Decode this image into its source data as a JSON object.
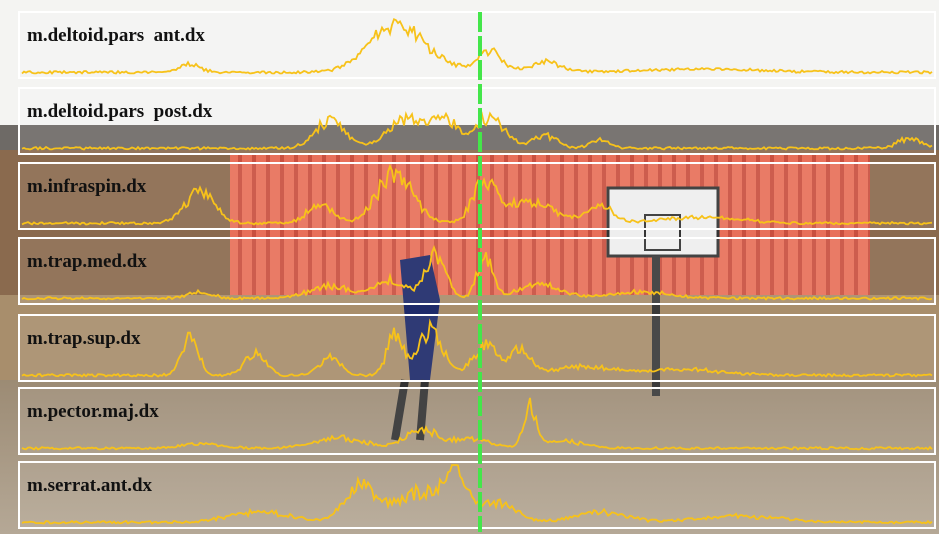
{
  "panels": [
    {
      "label": "m.deltoid.pars  ant.dx"
    },
    {
      "label": "m.deltoid.pars  post.dx"
    },
    {
      "label": "m.infraspin.dx"
    },
    {
      "label": "m.trap.med.dx"
    },
    {
      "label": "m.trap.sup.dx"
    },
    {
      "label": "m.pector.maj.dx"
    },
    {
      "label": "m.serrat.ant.dx"
    }
  ]
}
